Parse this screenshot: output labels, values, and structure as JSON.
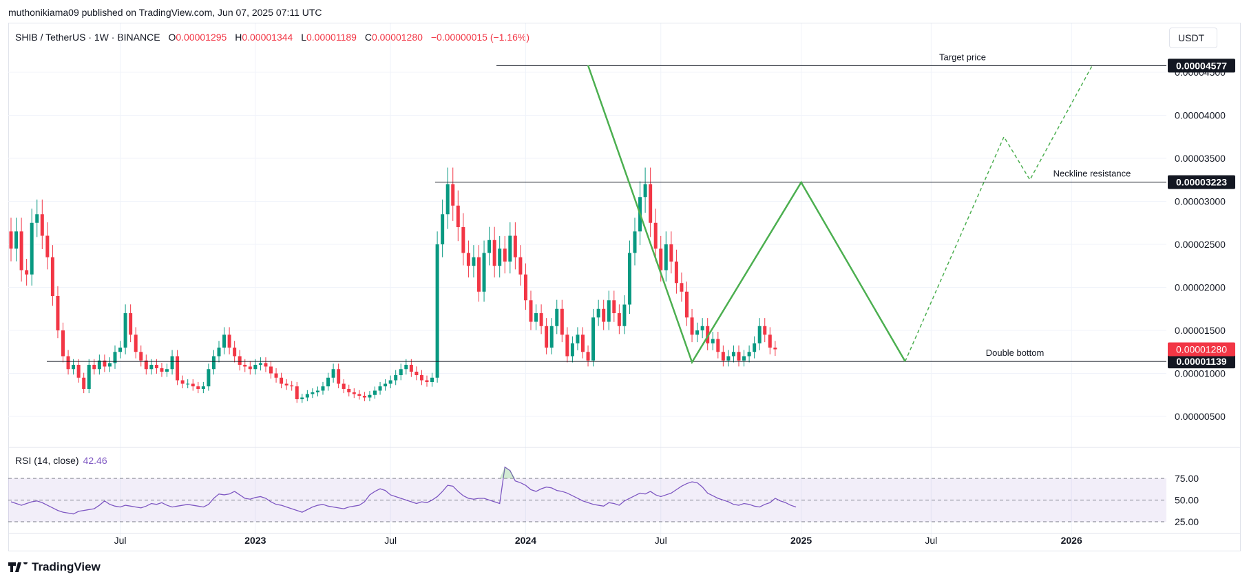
{
  "header": {
    "published": "muthonikiama09 published on TradingView.com, Jun 07, 2025 07:11 UTC"
  },
  "legend": {
    "symbol": "SHIB / TetherUS · 1W · BINANCE",
    "o_label": "O",
    "o": "0.00001295",
    "h_label": "H",
    "h": "0.00001344",
    "l_label": "L",
    "l": "0.00001189",
    "c_label": "C",
    "c": "0.00001280",
    "change": "−0.00000015 (−1.16%)"
  },
  "currency_button": "USDT",
  "rsi": {
    "label": "RSI (14, close)",
    "value": "42.46"
  },
  "footer": {
    "brand": "TradingView"
  },
  "colors": {
    "up": "#089981",
    "down": "#f23645",
    "pattern": "#4caf50",
    "rsi": "#7e57c2",
    "text": "#131722"
  },
  "chart_data": {
    "type": "candlestick",
    "symbol": "SHIB / TetherUS",
    "interval": "1W",
    "y_ticks": [
      "0.00000500",
      "0.00001000",
      "0.00001500",
      "0.00002000",
      "0.00002500",
      "0.00003000",
      "0.00003500",
      "0.00004000",
      "0.00004500"
    ],
    "x_ticks": [
      "Jul",
      "2023",
      "Jul",
      "2024",
      "Jul",
      "2025",
      "Jul",
      "2026"
    ],
    "ylim": [
      1e-06,
      4.75e-05
    ],
    "candles": [],
    "levels": [
      {
        "label": "Target price",
        "value": 4.577e-05,
        "price_label": "0.00004577"
      },
      {
        "label": "Neckline resistance",
        "value": 3.223e-05,
        "price_label": "0.00003223"
      },
      {
        "label": "Double bottom",
        "value": 1.139e-05,
        "price_label": "0.00001139"
      }
    ],
    "last_price": {
      "value": 1.28e-05,
      "label": "0.00001280"
    },
    "pattern_path": [
      [
        "2024-03-25",
        4.58e-05
      ],
      [
        "2024-08-12",
        1.13e-05
      ],
      [
        "2025-01-06",
        3.22e-05
      ],
      [
        "2025-05-26",
        1.14e-05
      ]
    ],
    "projection_path": [
      [
        "2025-05-26",
        1.14e-05
      ],
      [
        "2025-10-06",
        3.75e-05
      ],
      [
        "2025-11-10",
        3.25e-05
      ],
      [
        "2026-02-02",
        4.58e-05
      ]
    ],
    "rsi": {
      "levels": [
        75,
        50,
        25
      ],
      "tick_labels": [
        "75.00",
        "50.00",
        "25.00"
      ],
      "values": [
        48,
        46,
        44,
        46,
        48,
        49,
        47,
        44,
        41,
        38,
        36,
        35,
        34,
        37,
        38,
        39,
        40,
        44,
        49,
        45,
        43,
        42,
        44,
        43,
        42,
        41,
        43,
        46,
        45,
        47,
        44,
        42,
        43,
        44,
        45,
        44,
        43,
        42,
        45,
        52,
        57,
        56,
        57,
        60,
        56,
        52,
        51,
        53,
        54,
        52,
        48,
        45,
        44,
        42,
        40,
        38,
        36,
        39,
        42,
        44,
        45,
        43,
        42,
        41,
        40,
        42,
        43,
        44,
        48,
        56,
        60,
        63,
        61,
        56,
        54,
        52,
        50,
        48,
        46,
        48,
        47,
        50,
        54,
        60,
        67,
        66,
        60,
        55,
        52,
        51,
        52,
        52,
        50,
        48,
        46,
        88,
        84,
        72,
        70,
        67,
        62,
        60,
        63,
        65,
        64,
        61,
        60,
        58,
        55,
        52,
        49,
        47,
        45,
        44,
        43,
        47,
        46,
        44,
        49,
        52,
        55,
        58,
        57,
        60,
        56,
        54,
        56,
        58,
        62,
        66,
        69,
        71,
        70,
        65,
        58,
        55,
        52,
        50,
        48,
        45,
        44,
        46,
        45,
        43,
        42,
        45,
        47,
        52,
        49,
        47,
        44,
        42
      ],
      "last": 42.46
    }
  }
}
